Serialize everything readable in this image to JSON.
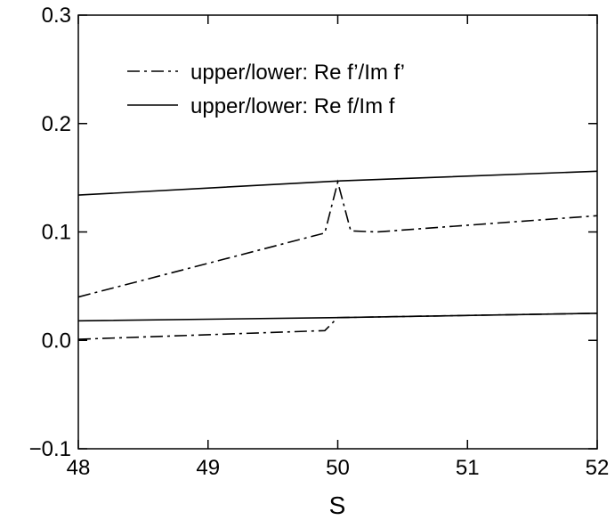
{
  "chart_data": {
    "type": "line",
    "title": "",
    "xlabel": "S",
    "ylabel": "",
    "xlim": [
      48,
      52
    ],
    "ylim": [
      -0.1,
      0.3
    ],
    "xticks": [
      48,
      49,
      50,
      51,
      52
    ],
    "xtick_labels": [
      "48",
      "49",
      "50",
      "51",
      "52"
    ],
    "yticks": [
      -0.1,
      0.0,
      0.1,
      0.2,
      0.3
    ],
    "ytick_labels": [
      "−0.1",
      "0.0",
      "0.1",
      "0.2",
      "0.3"
    ],
    "grid": false,
    "legend_position": "top-left",
    "series": [
      {
        "name": "upper/lower: Re f’/Im f’",
        "style": "dash-dot",
        "color": "#000000",
        "segments": [
          {
            "x": [
              48,
              49.9,
              50.0,
              50.1,
              50.3,
              52
            ],
            "y": [
              0.04,
              0.099,
              0.146,
              0.101,
              0.1,
              0.115
            ]
          },
          {
            "x": [
              48,
              49.9,
              50.0,
              52
            ],
            "y": [
              0.001,
              0.009,
              0.021,
              0.025
            ]
          }
        ]
      },
      {
        "name": "upper/lower: Re f/Im f",
        "style": "solid",
        "color": "#000000",
        "segments": [
          {
            "x": [
              48,
              50,
              52
            ],
            "y": [
              0.134,
              0.147,
              0.156
            ]
          },
          {
            "x": [
              48,
              50,
              52
            ],
            "y": [
              0.018,
              0.021,
              0.025
            ]
          }
        ]
      }
    ]
  }
}
